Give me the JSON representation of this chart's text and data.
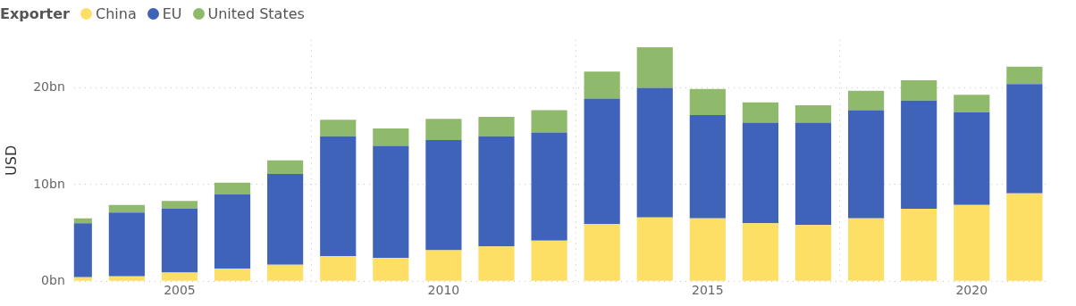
{
  "chart_data": {
    "type": "bar",
    "stacked": true,
    "ylabel": "USD",
    "legend_title": "Exporter",
    "legend": "top left",
    "grid": true,
    "x": [
      2003,
      2004,
      2005,
      2006,
      2007,
      2008,
      2009,
      2010,
      2011,
      2012,
      2013,
      2014,
      2015,
      2016,
      2017,
      2018,
      2019,
      2020,
      2021
    ],
    "xlim": [
      2003,
      2021.4
    ],
    "xticks": [
      2005,
      2010,
      2015,
      2020
    ],
    "ylim": [
      0,
      25
    ],
    "yticks": [
      {
        "value": 0,
        "label": "0bn"
      },
      {
        "value": 10,
        "label": "10bn"
      },
      {
        "value": 20,
        "label": "20bn"
      }
    ],
    "series": [
      {
        "name": "China",
        "color": "#fddf66",
        "values": [
          0.4,
          0.5,
          0.9,
          1.3,
          1.7,
          2.6,
          2.4,
          3.2,
          3.6,
          4.2,
          5.9,
          6.6,
          6.5,
          6.0,
          5.8,
          6.5,
          7.5,
          7.9,
          9.1
        ]
      },
      {
        "name": "EU",
        "color": "#4063ba",
        "values": [
          5.6,
          6.6,
          6.6,
          7.7,
          9.4,
          12.4,
          11.6,
          11.4,
          11.4,
          11.2,
          13.0,
          13.4,
          10.7,
          10.4,
          10.6,
          11.2,
          11.2,
          9.6,
          11.3
        ]
      },
      {
        "name": "United States",
        "color": "#8fba6b",
        "values": [
          0.5,
          0.8,
          0.8,
          1.2,
          1.4,
          1.7,
          1.8,
          2.2,
          2.0,
          2.3,
          2.8,
          4.2,
          2.7,
          2.1,
          1.8,
          2.0,
          2.1,
          1.8,
          1.8
        ]
      }
    ]
  }
}
